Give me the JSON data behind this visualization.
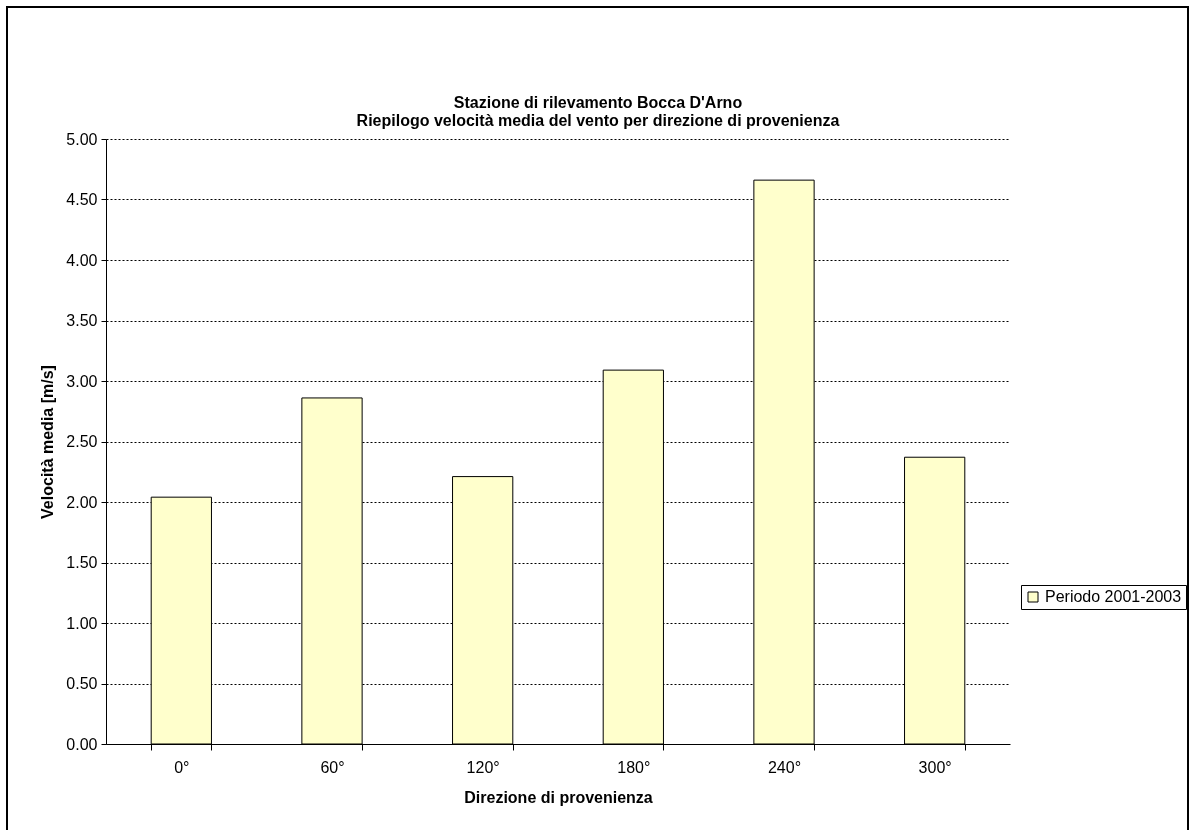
{
  "chart_data": {
    "type": "bar",
    "title": "Stazione di rilevamento Bocca D'Arno",
    "subtitle": "Riepilogo velocità media del vento per direzione di provenienza",
    "xlabel": "Direzione di provenienza",
    "ylabel": "Velocità media [m/s]",
    "categories": [
      "0°",
      "60°",
      "120°",
      "180°",
      "240°",
      "300°"
    ],
    "series": [
      {
        "name": "Periodo 2001-2003",
        "color": "#ffffcc",
        "values": [
          2.04,
          2.86,
          2.21,
          3.09,
          4.66,
          2.37
        ]
      }
    ],
    "ylim": [
      0,
      5
    ],
    "yticks": [
      {
        "value": 0,
        "label": "0.00"
      },
      {
        "value": 0.5,
        "label": "0.50"
      },
      {
        "value": 1,
        "label": "1.00"
      },
      {
        "value": 1.5,
        "label": "1.50"
      },
      {
        "value": 2,
        "label": "2.00"
      },
      {
        "value": 2.5,
        "label": "2.50"
      },
      {
        "value": 3,
        "label": "3.00"
      },
      {
        "value": 3.5,
        "label": "3.50"
      },
      {
        "value": 4,
        "label": "4.00"
      },
      {
        "value": 4.5,
        "label": "4.50"
      },
      {
        "value": 5,
        "label": "5.00"
      }
    ],
    "grid": "y",
    "legend": "right"
  }
}
